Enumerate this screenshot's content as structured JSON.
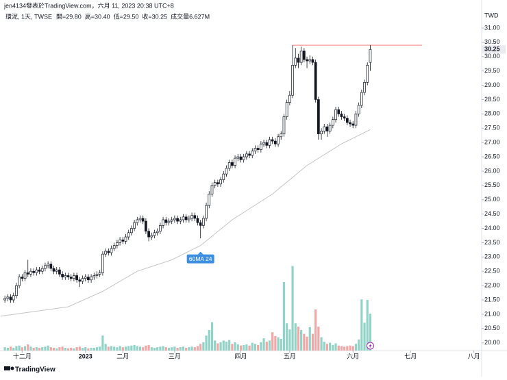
{
  "header": {
    "line1": "jen4134發表於TradingView.com，六月 11, 2023 20:38 UTC+8",
    "symbol": "環泥, 1天, TWSE",
    "legend": [
      "開=29.80",
      "高=30.40",
      "低=29.50",
      "收=30.25",
      "成交量6.627M"
    ],
    "brand": "TradingView"
  },
  "chart_data": {
    "type": "candlestick",
    "currency": "TWD",
    "open": [
      21.5,
      21.55,
      21.6,
      21.5,
      21.65,
      22.0,
      22.3,
      22.25,
      22.45,
      22.4,
      22.5,
      22.45,
      22.55,
      22.5,
      22.6,
      22.7,
      22.75,
      22.6,
      22.5,
      22.55,
      22.4,
      22.3,
      22.35,
      22.3,
      22.25,
      22.35,
      22.2,
      22.15,
      22.25,
      22.3,
      22.2,
      22.3,
      22.35,
      22.4,
      22.45,
      23.1,
      23.2,
      23.15,
      23.3,
      23.4,
      23.5,
      23.6,
      23.55,
      23.7,
      23.85,
      24.0,
      24.2,
      24.3,
      24.35,
      24.25,
      23.9,
      23.7,
      23.75,
      23.85,
      23.9,
      24.1,
      24.3,
      24.2,
      24.25,
      24.3,
      24.35,
      24.25,
      24.3,
      24.4,
      24.3,
      24.35,
      24.45,
      24.35,
      24.2,
      24.1,
      24.35,
      24.8,
      25.2,
      25.5,
      25.6,
      25.55,
      25.7,
      25.9,
      26.1,
      26.3,
      26.2,
      26.45,
      26.5,
      26.4,
      26.5,
      26.6,
      26.55,
      26.7,
      26.8,
      26.75,
      26.95,
      27.0,
      26.9,
      27.1,
      27.05,
      26.95,
      27.2,
      27.3,
      27.9,
      28.4,
      28.65,
      29.7,
      29.95,
      29.8,
      30.2,
      29.9,
      29.85,
      29.9,
      29.8,
      28.5,
      27.3,
      27.4,
      27.55,
      27.4,
      27.6,
      27.8,
      28.15,
      28.0,
      27.9,
      27.85,
      27.7,
      27.65,
      27.6,
      28.0,
      28.3,
      28.75,
      29.1,
      29.8
    ],
    "high": [
      21.65,
      21.7,
      21.7,
      21.75,
      22.1,
      22.4,
      22.4,
      22.55,
      22.9,
      22.6,
      22.6,
      22.65,
      22.65,
      22.7,
      22.8,
      22.85,
      22.85,
      22.7,
      22.65,
      22.65,
      22.5,
      22.45,
      22.45,
      22.4,
      22.45,
      22.45,
      22.3,
      22.35,
      22.4,
      22.4,
      22.4,
      22.45,
      22.5,
      22.55,
      23.2,
      23.3,
      23.3,
      23.4,
      23.5,
      23.6,
      23.7,
      23.7,
      23.8,
      23.95,
      24.1,
      24.3,
      24.4,
      24.45,
      24.45,
      24.35,
      24.0,
      23.85,
      23.95,
      24.0,
      24.2,
      24.4,
      24.4,
      24.35,
      24.4,
      24.45,
      24.45,
      24.4,
      24.5,
      24.5,
      24.45,
      24.55,
      24.55,
      24.45,
      24.3,
      24.45,
      24.9,
      25.3,
      25.6,
      25.7,
      25.7,
      25.8,
      26.0,
      26.2,
      26.4,
      26.4,
      26.55,
      26.6,
      26.6,
      26.6,
      26.7,
      26.7,
      26.8,
      26.9,
      26.9,
      27.05,
      27.1,
      27.1,
      27.2,
      27.2,
      27.15,
      27.3,
      27.4,
      28.0,
      28.5,
      28.8,
      30.4,
      30.3,
      30.1,
      30.35,
      30.3,
      30.0,
      30.05,
      30.0,
      29.9,
      28.6,
      27.5,
      27.65,
      27.65,
      27.7,
      27.9,
      28.25,
      28.25,
      28.1,
      28.0,
      27.95,
      27.8,
      27.75,
      28.1,
      28.4,
      28.85,
      29.2,
      29.8,
      30.4
    ],
    "low": [
      21.4,
      21.45,
      21.4,
      21.4,
      21.55,
      21.9,
      22.15,
      22.15,
      22.3,
      22.3,
      22.35,
      22.35,
      22.4,
      22.4,
      22.5,
      22.6,
      22.5,
      22.4,
      22.4,
      22.3,
      22.2,
      22.2,
      22.2,
      22.15,
      22.15,
      22.1,
      21.95,
      22.05,
      22.15,
      22.1,
      22.1,
      22.2,
      22.25,
      22.3,
      22.35,
      23.0,
      23.05,
      23.05,
      23.2,
      23.3,
      23.4,
      23.45,
      23.45,
      23.6,
      23.75,
      23.9,
      24.1,
      24.2,
      24.15,
      23.8,
      23.55,
      23.6,
      23.65,
      23.75,
      23.8,
      24.0,
      24.1,
      24.1,
      24.15,
      24.2,
      24.15,
      24.15,
      24.2,
      24.2,
      24.2,
      24.25,
      24.25,
      24.1,
      23.65,
      24.0,
      24.25,
      24.7,
      25.1,
      25.4,
      25.45,
      25.45,
      25.6,
      25.8,
      26.0,
      26.1,
      26.1,
      26.35,
      26.3,
      26.3,
      26.4,
      26.45,
      26.45,
      26.6,
      26.65,
      26.65,
      26.85,
      26.8,
      26.8,
      26.95,
      26.85,
      26.85,
      27.1,
      27.2,
      27.8,
      28.3,
      28.55,
      29.6,
      29.6,
      29.7,
      29.8,
      29.6,
      29.75,
      29.7,
      28.4,
      27.1,
      27.1,
      27.3,
      27.2,
      27.3,
      27.5,
      27.7,
      27.9,
      27.8,
      27.75,
      27.6,
      27.55,
      27.5,
      27.5,
      27.9,
      28.2,
      28.65,
      29.0,
      29.5
    ],
    "close": [
      21.55,
      21.6,
      21.5,
      21.65,
      22.0,
      22.3,
      22.25,
      22.45,
      22.4,
      22.5,
      22.45,
      22.55,
      22.5,
      22.6,
      22.7,
      22.75,
      22.6,
      22.5,
      22.55,
      22.4,
      22.3,
      22.35,
      22.3,
      22.25,
      22.35,
      22.2,
      22.15,
      22.25,
      22.3,
      22.2,
      22.3,
      22.35,
      22.4,
      22.45,
      23.1,
      23.2,
      23.15,
      23.3,
      23.4,
      23.5,
      23.6,
      23.55,
      23.7,
      23.85,
      24.0,
      24.2,
      24.3,
      24.35,
      24.25,
      23.9,
      23.7,
      23.75,
      23.85,
      23.9,
      24.1,
      24.3,
      24.2,
      24.25,
      24.3,
      24.35,
      24.25,
      24.3,
      24.4,
      24.3,
      24.35,
      24.45,
      24.35,
      24.2,
      24.1,
      24.35,
      24.8,
      25.2,
      25.5,
      25.6,
      25.55,
      25.7,
      25.9,
      26.1,
      26.3,
      26.2,
      26.45,
      26.5,
      26.4,
      26.5,
      26.6,
      26.55,
      26.7,
      26.8,
      26.75,
      26.95,
      27.0,
      26.9,
      27.1,
      27.05,
      26.95,
      27.2,
      27.3,
      27.9,
      28.4,
      28.65,
      29.7,
      29.95,
      29.8,
      30.2,
      29.9,
      29.85,
      29.9,
      29.8,
      28.5,
      27.3,
      27.4,
      27.55,
      27.4,
      27.6,
      27.8,
      28.15,
      28.0,
      27.9,
      27.85,
      27.7,
      27.65,
      27.6,
      28.0,
      28.3,
      28.75,
      29.1,
      29.7,
      30.25
    ],
    "volume": [
      0.6,
      0.5,
      0.7,
      0.5,
      0.8,
      0.9,
      0.6,
      0.8,
      1.1,
      0.7,
      0.5,
      0.6,
      0.5,
      0.6,
      0.7,
      0.9,
      0.6,
      0.5,
      0.4,
      0.6,
      0.7,
      0.5,
      0.4,
      0.5,
      0.4,
      0.6,
      0.7,
      0.5,
      0.6,
      0.4,
      0.5,
      0.5,
      0.6,
      0.7,
      2.7,
      1.2,
      0.7,
      0.8,
      0.7,
      0.6,
      0.8,
      0.6,
      0.7,
      0.8,
      0.9,
      1.0,
      0.8,
      0.7,
      0.6,
      0.9,
      1.0,
      0.6,
      0.5,
      0.6,
      0.7,
      0.8,
      0.6,
      0.5,
      0.6,
      0.7,
      0.5,
      0.6,
      0.7,
      0.5,
      0.6,
      0.7,
      0.6,
      0.8,
      1.2,
      1.5,
      2.7,
      3.7,
      5.1,
      1.8,
      1.3,
      1.5,
      1.8,
      1.6,
      1.9,
      1.2,
      1.5,
      1.1,
      0.9,
      1.0,
      1.1,
      0.9,
      1.4,
      1.2,
      1.0,
      1.5,
      2.2,
      1.6,
      1.8,
      3.3,
      2.6,
      2.4,
      2.1,
      12.3,
      4.9,
      3.8,
      15.2,
      4.9,
      4.3,
      3.7,
      3.0,
      2.5,
      4.2,
      3.0,
      7.4,
      4.3,
      2.4,
      1.6,
      1.2,
      1.4,
      1.0,
      1.3,
      0.9,
      0.8,
      0.7,
      0.8,
      0.9,
      0.8,
      1.2,
      2.0,
      9.2,
      5.0,
      9.1,
      6.627
    ],
    "up_color": "#ffffff",
    "down_color": "#131722",
    "volume_up_color": "#92d3c8",
    "volume_down_color": "#f2a7a7",
    "volume_lim": [
      0,
      16
    ],
    "ma": {
      "name": "60MA 24",
      "color": "#c4c4c4",
      "label_color": "#3c8fe0",
      "x": [
        -1.5,
        22,
        34,
        46,
        58,
        68,
        79,
        93,
        105,
        117,
        127
      ],
      "values": [
        20.93,
        21.26,
        21.8,
        22.5,
        22.9,
        23.4,
        24.3,
        25.2,
        26.2,
        26.95,
        27.45
      ]
    },
    "hline": {
      "value": 30.4,
      "x": [
        100,
        145
      ],
      "color": "#f28b82"
    },
    "last_label": "30.25",
    "xlim": [
      -1.7,
      165
    ],
    "ylim": [
      19.73,
      31.98
    ],
    "grid": false,
    "xticks": [
      {
        "value": 6,
        "label": "十二月"
      },
      {
        "value": 28,
        "label": "2023"
      },
      {
        "value": 41,
        "label": "二月"
      },
      {
        "value": 59,
        "label": "三月"
      },
      {
        "value": 82,
        "label": "四月"
      },
      {
        "value": 99,
        "label": "五月"
      },
      {
        "value": 121,
        "label": "六月"
      },
      {
        "value": 141,
        "label": "七月"
      },
      {
        "value": 163,
        "label": "八月"
      }
    ],
    "yticks": [
      {
        "value": 20,
        "label": "20.00"
      },
      {
        "value": 20.5,
        "label": "20.50"
      },
      {
        "value": 21,
        "label": "21.00"
      },
      {
        "value": 21.5,
        "label": "21.50"
      },
      {
        "value": 22,
        "label": "22.00"
      },
      {
        "value": 22.5,
        "label": "22.50"
      },
      {
        "value": 23,
        "label": "23.00"
      },
      {
        "value": 23.5,
        "label": "23.50"
      },
      {
        "value": 24,
        "label": "24.00"
      },
      {
        "value": 24.5,
        "label": "24.50"
      },
      {
        "value": 25,
        "label": "25.00"
      },
      {
        "value": 25.5,
        "label": "25.50"
      },
      {
        "value": 26,
        "label": "26.00"
      },
      {
        "value": 26.5,
        "label": "26.50"
      },
      {
        "value": 27,
        "label": "27.00"
      },
      {
        "value": 27.5,
        "label": "27.50"
      },
      {
        "value": 28,
        "label": "28.00"
      },
      {
        "value": 28.5,
        "label": "28.50"
      },
      {
        "value": 29,
        "label": "29.00"
      },
      {
        "value": 29.5,
        "label": "29.50"
      },
      {
        "value": 30,
        "label": "30.00"
      },
      {
        "value": 30.5,
        "label": "30.50"
      },
      {
        "value": 31,
        "label": "31.00"
      }
    ]
  }
}
